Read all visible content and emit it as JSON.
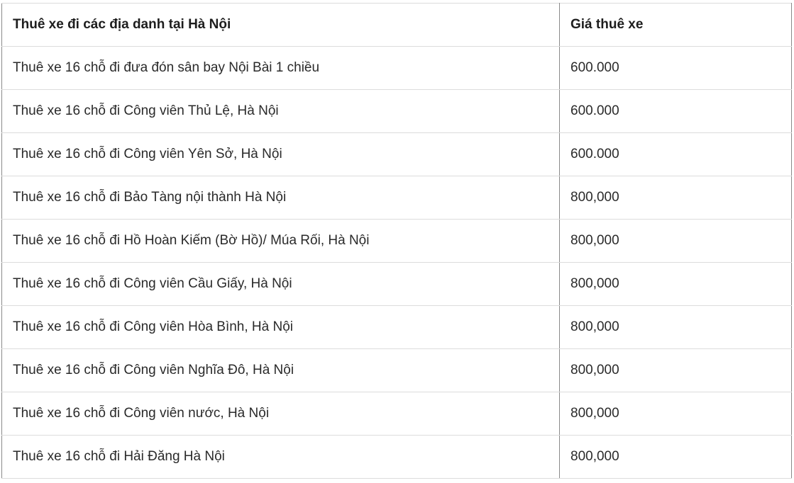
{
  "table": {
    "headers": [
      "Thuê xe đi các địa danh tại Hà Nội",
      "Giá thuê xe"
    ],
    "rows": [
      [
        "Thuê xe 16 chỗ đi đưa đón sân bay Nội Bài 1 chiều",
        "600.000"
      ],
      [
        "Thuê xe 16 chỗ đi Công viên Thủ Lệ, Hà Nội",
        "600.000"
      ],
      [
        "Thuê xe 16 chỗ đi Công viên Yên Sở, Hà Nội",
        "600.000"
      ],
      [
        "Thuê xe 16 chỗ đi Bảo Tàng nội thành Hà Nội",
        "800,000"
      ],
      [
        "Thuê xe 16 chỗ đi Hồ Hoàn Kiếm (Bờ Hồ)/ Múa Rối, Hà Nội",
        "800,000"
      ],
      [
        "Thuê xe 16 chỗ đi Công viên Cầu Giấy, Hà Nội",
        "800,000"
      ],
      [
        "Thuê xe 16 chỗ đi Công viên Hòa Bình, Hà Nội",
        "800,000"
      ],
      [
        "Thuê xe 16 chỗ đi Công viên Nghĩa Đô, Hà Nội",
        "800,000"
      ],
      [
        "Thuê xe 16 chỗ đi Công viên nước, Hà Nội",
        "800,000"
      ],
      [
        "Thuê xe 16 chỗ đi Hải Đăng Hà Nội",
        "800,000"
      ]
    ]
  }
}
